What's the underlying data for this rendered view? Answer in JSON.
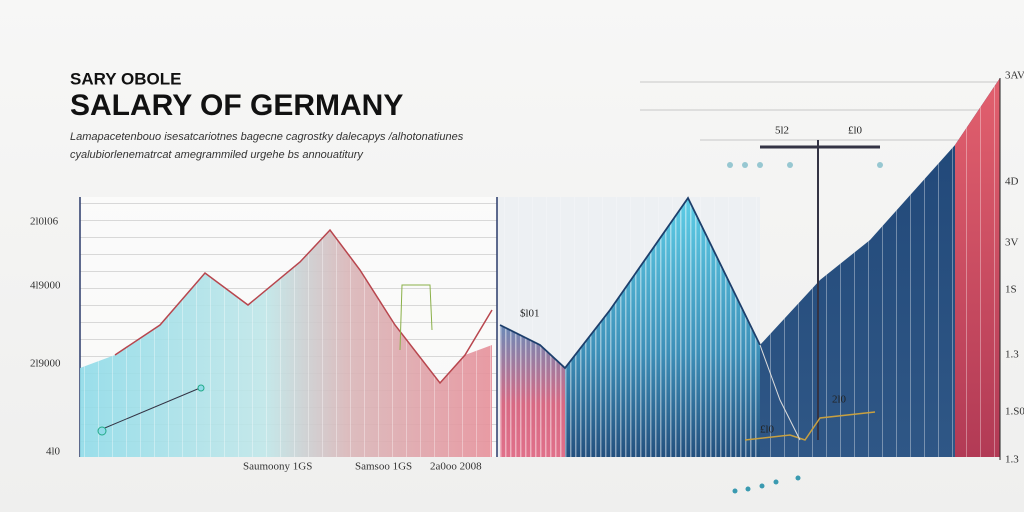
{
  "header": {
    "kicker": "SARY OBOLE",
    "title": "SALARY OF GERMANY",
    "subtitle": [
      "Lamapacetenbouo isesatcariotnes bagecne cagrostky dalecapys /alhotonatiunes",
      "cyalubiorlenematrcat amegrammiled urgehe bs annouatitury"
    ]
  },
  "left_axis": [
    "2l0l06",
    "4l9000",
    "2l9000",
    "4l0"
  ],
  "right_axis": [
    "3AV",
    "4D",
    "3V",
    "1S",
    "1.3",
    "1.S0",
    "1.3"
  ],
  "x_labels": [
    "Saumoony 1GS",
    "Samsoo 1GS",
    "2a0oo 2008"
  ],
  "annotations": [
    "5l2",
    "£l0",
    "$l01",
    "£l0",
    "2l0"
  ]
}
